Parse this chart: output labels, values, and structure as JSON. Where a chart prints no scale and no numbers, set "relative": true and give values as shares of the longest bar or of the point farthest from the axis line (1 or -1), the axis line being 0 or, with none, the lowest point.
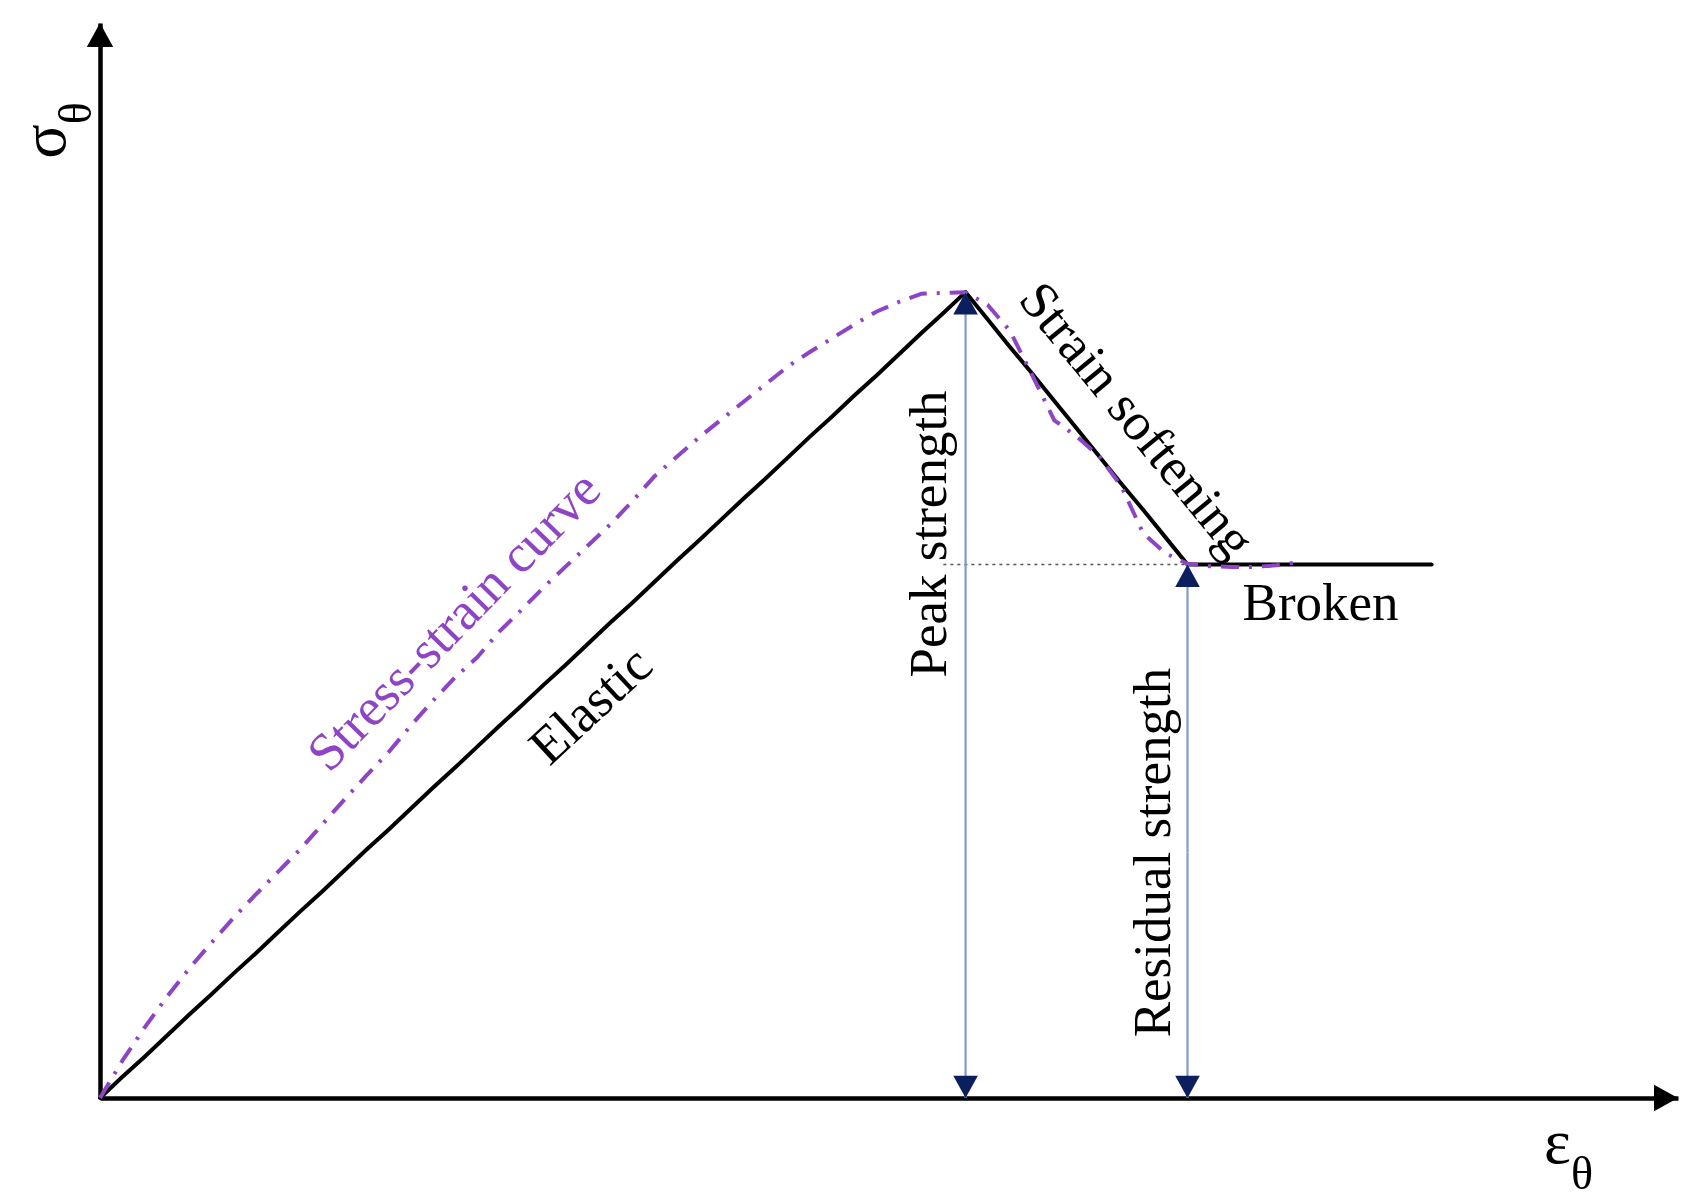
{
  "chart_data": {
    "type": "line",
    "relative": true,
    "xlabel": "ε$_{θ}$",
    "ylabel": "σ$_{θ}$",
    "categories": [
      null,
      null,
      null,
      null,
      null,
      null,
      null,
      null,
      null,
      null,
      null,
      null,
      null,
      null,
      null,
      null,
      null,
      null,
      null,
      null,
      null,
      null,
      null,
      null,
      null,
      null,
      null,
      null,
      null,
      null,
      null,
      null,
      null,
      null,
      null,
      null,
      null,
      null,
      null,
      null,
      null,
      null,
      null,
      null,
      null,
      null,
      null,
      null,
      null,
      null,
      null,
      null,
      null,
      null,
      null,
      null,
      null,
      null,
      null,
      null,
      null
    ],
    "series": [
      {
        "name": "Elastic",
        "color": "#000000",
        "values": [
          0,
          0.026,
          0.051,
          0.077,
          0.103,
          0.128,
          0.154,
          0.179,
          0.205,
          0.231,
          0.256,
          0.282,
          0.308,
          0.333,
          0.359,
          0.385,
          0.41,
          0.436,
          0.462,
          0.487,
          0.513,
          0.538,
          0.564,
          0.59,
          0.615,
          0.641,
          0.667,
          0.692,
          0.718,
          0.744,
          0.769,
          0.795,
          0.821,
          0.846,
          0.872,
          0.897,
          0.923,
          0.949,
          0.974,
          1,
          null,
          null,
          null,
          null,
          null,
          null,
          null,
          null,
          null,
          null,
          null,
          null,
          null,
          null,
          null,
          null,
          null,
          null,
          null,
          null,
          null
        ]
      },
      {
        "name": "Strain softening",
        "color": "#000000",
        "values": [
          null,
          null,
          null,
          null,
          null,
          null,
          null,
          null,
          null,
          null,
          null,
          null,
          null,
          null,
          null,
          null,
          null,
          null,
          null,
          null,
          null,
          null,
          null,
          null,
          null,
          null,
          null,
          null,
          null,
          null,
          null,
          null,
          null,
          null,
          null,
          null,
          null,
          null,
          null,
          1,
          0.966,
          0.932,
          0.899,
          0.865,
          0.831,
          0.797,
          0.763,
          0.73,
          0.696,
          0.662,
          null,
          null,
          null,
          null,
          null,
          null,
          null,
          null,
          null,
          null,
          null
        ]
      },
      {
        "name": "Broken",
        "color": "#000000",
        "values": [
          null,
          null,
          null,
          null,
          null,
          null,
          null,
          null,
          null,
          null,
          null,
          null,
          null,
          null,
          null,
          null,
          null,
          null,
          null,
          null,
          null,
          null,
          null,
          null,
          null,
          null,
          null,
          null,
          null,
          null,
          null,
          null,
          null,
          null,
          null,
          null,
          null,
          null,
          null,
          null,
          null,
          null,
          null,
          null,
          null,
          null,
          null,
          null,
          null,
          0.662,
          0.662,
          0.662,
          0.662,
          0.662,
          0.662,
          0.662,
          0.662,
          0.662,
          0.662,
          0.662,
          0.662
        ]
      },
      {
        "name": "Stress-strain curve",
        "color": "#8e44c4",
        "line_style": "dashed",
        "values": [
          0,
          0.046,
          0.087,
          0.125,
          0.16,
          0.192,
          0.223,
          0.252,
          0.28,
          0.308,
          0.339,
          0.37,
          0.4,
          0.429,
          0.462,
          0.493,
          0.522,
          0.547,
          0.579,
          0.606,
          0.634,
          0.66,
          0.686,
          0.712,
          0.741,
          0.772,
          0.796,
          0.82,
          0.842,
          0.864,
          0.886,
          0.908,
          0.926,
          0.943,
          0.96,
          0.976,
          0.988,
          0.998,
          0.999,
          1,
          0.984,
          0.952,
          0.897,
          0.841,
          0.821,
          0.797,
          0.76,
          0.701,
          0.676,
          0.663,
          0.66,
          0.659,
          0.659,
          0.661,
          0.665,
          null,
          null,
          null,
          null,
          null,
          null
        ]
      },
      {
        "color": "#555555",
        "line_style": "dotted",
        "values": [
          null,
          null,
          null,
          null,
          null,
          null,
          null,
          null,
          null,
          null,
          null,
          null,
          null,
          null,
          null,
          null,
          null,
          null,
          null,
          null,
          null,
          null,
          null,
          null,
          null,
          null,
          null,
          null,
          null,
          null,
          null,
          null,
          null,
          null,
          null,
          null,
          null,
          null,
          0.662,
          0.662,
          0.662,
          0.662,
          0.662,
          0.662,
          0.662,
          0.662,
          0.662,
          0.662,
          0.662,
          0.662,
          null,
          null,
          null,
          null,
          null,
          null,
          null,
          null,
          null,
          null,
          null
        ]
      }
    ],
    "annotations": [
      {
        "text": "Peak strength",
        "y": 1
      },
      {
        "text": "Residual strength",
        "y": 0.662
      }
    ]
  }
}
